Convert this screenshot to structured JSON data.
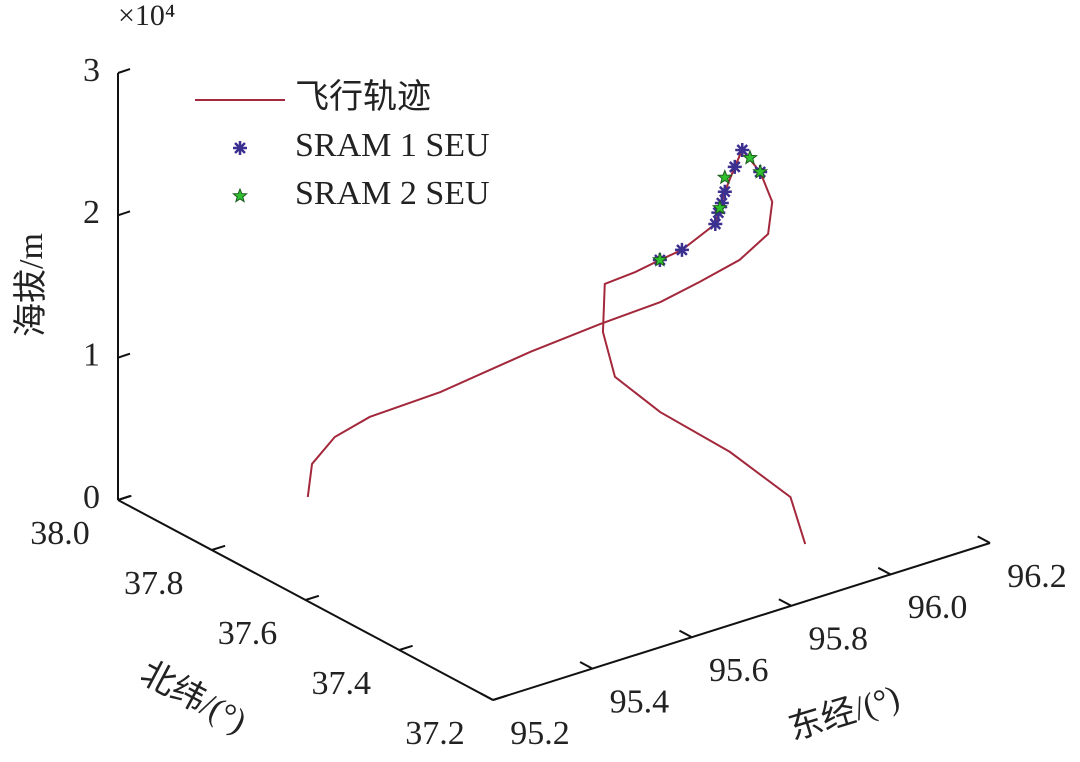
{
  "chart_data": {
    "type": "line3d",
    "z_multiplier": "×10⁴",
    "zlabel": "海拔/m",
    "ylabel": "北纬/(°)",
    "xlabel": "东经/(°)",
    "xlim": [
      95.2,
      96.2
    ],
    "xticks": [
      95.2,
      95.4,
      95.6,
      95.8,
      {
        "value": 96.0,
        "label": "96.0"
      },
      96.2
    ],
    "ylim": [
      37.2,
      38.0
    ],
    "yticks": [
      37.2,
      37.4,
      37.6,
      37.8,
      {
        "value": 38.0,
        "label": "38.0"
      }
    ],
    "zlim": [
      0,
      30000
    ],
    "zticks": [
      {
        "value": 0,
        "label": "0"
      },
      {
        "value": 10000,
        "label": "1"
      },
      {
        "value": 20000,
        "label": "2"
      },
      {
        "value": 30000,
        "label": "3"
      }
    ],
    "legend": "upper left",
    "series": [
      {
        "name": "飞行轨迹",
        "color": "#a3283c",
        "marker": "none",
        "x": [
          95.447,
          95.48,
          95.522,
          95.563,
          95.644,
          95.768,
          95.855,
          95.916,
          95.946,
          95.981,
          96.011,
          96.025,
          96.013,
          95.992,
          95.993,
          95.989,
          95.968,
          95.915,
          95.897,
          95.871,
          95.838,
          95.84,
          95.85,
          95.908,
          95.986,
          96.023,
          95.964
        ],
        "y": [
          37.857,
          37.883,
          37.879,
          37.848,
          37.783,
          37.723,
          37.666,
          37.602,
          37.55,
          37.502,
          37.473,
          37.479,
          37.492,
          37.508,
          37.525,
          37.542,
          37.54,
          37.555,
          37.583,
          37.608,
          37.638,
          37.644,
          37.629,
          37.594,
          37.528,
          37.438,
          37.344
        ],
        "z": [
          0,
          1500,
          3000,
          4500,
          6500,
          9000,
          11000,
          13000,
          15000,
          17000,
          19000,
          21000,
          23000,
          24500,
          23000,
          21000,
          19000,
          17500,
          16500,
          15500,
          14500,
          11000,
          8000,
          5500,
          3000,
          1000,
          0
        ]
      },
      {
        "name": "SRAM 1 SEU",
        "color": "#3b2f8f",
        "marker": "asterisk",
        "x": [
          95.897,
          95.915,
          95.968,
          95.975,
          95.982,
          95.989,
          95.993,
          95.992,
          96.013
        ],
        "y": [
          37.583,
          37.555,
          37.54,
          37.541,
          37.541,
          37.542,
          37.525,
          37.508,
          37.492
        ],
        "z": [
          16500,
          17500,
          19000,
          19700,
          20300,
          21000,
          23000,
          24500,
          23000
        ]
      },
      {
        "name": "SRAM 2 SEU",
        "color": "#2ec02e",
        "marker": "pentagram",
        "x": [
          95.897,
          95.978,
          95.989,
          96.013,
          96.0
        ],
        "y": [
          37.583,
          37.541,
          37.542,
          37.492,
          37.5
        ],
        "z": [
          16500,
          20000,
          22000,
          23000,
          24000
        ]
      }
    ]
  }
}
